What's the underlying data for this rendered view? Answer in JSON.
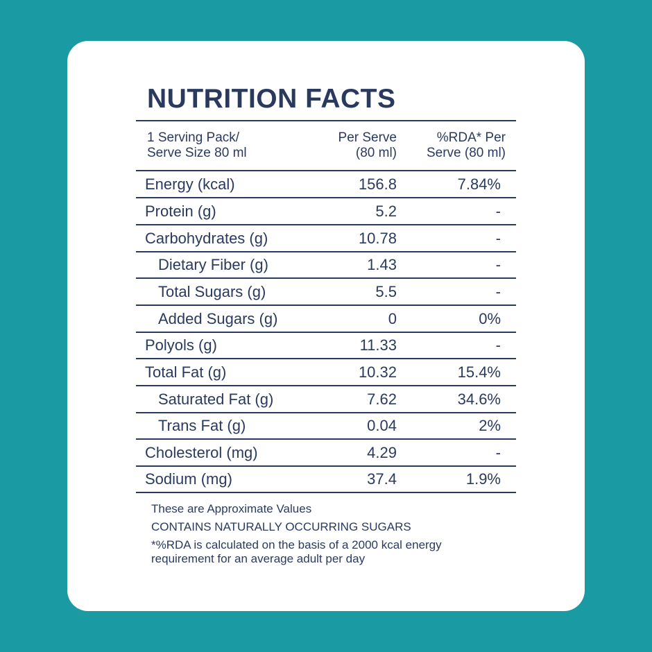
{
  "title": "NUTRITION FACTS",
  "header": {
    "col1_line1": "1 Serving Pack/",
    "col1_line2": "Serve Size 80 ml",
    "col2_line1": "Per Serve",
    "col2_line2": "(80 ml)",
    "col3_line1": "%RDA* Per",
    "col3_line2": "Serve (80 ml)"
  },
  "rows": [
    {
      "label": "Energy (kcal)",
      "per_serve": "156.8",
      "rda": "7.84%"
    },
    {
      "label": "Protein (g)",
      "per_serve": "5.2",
      "rda": "-"
    },
    {
      "label": "Carbohydrates (g)",
      "per_serve": "10.78",
      "rda": "-"
    },
    {
      "label": "Dietary Fiber (g)",
      "per_serve": "1.43",
      "rda": "-"
    },
    {
      "label": "Total Sugars (g)",
      "per_serve": "5.5",
      "rda": "-"
    },
    {
      "label": "Added Sugars (g)",
      "per_serve": "0",
      "rda": "0%"
    },
    {
      "label": "Polyols (g)",
      "per_serve": "11.33",
      "rda": "-"
    },
    {
      "label": "Total Fat (g)",
      "per_serve": "10.32",
      "rda": "15.4%"
    },
    {
      "label": "Saturated Fat (g)",
      "per_serve": "7.62",
      "rda": "34.6%"
    },
    {
      "label": "Trans Fat (g)",
      "per_serve": "0.04",
      "rda": "2%"
    },
    {
      "label": "Cholesterol (mg)",
      "per_serve": "4.29",
      "rda": "-"
    },
    {
      "label": "Sodium (mg)",
      "per_serve": "37.4",
      "rda": "1.9%"
    }
  ],
  "notes": {
    "line1": "These are Approximate Values",
    "line2": "CONTAINS NATURALLY OCCURRING SUGARS",
    "line3a": "*%RDA is calculated on the basis of a 2000 kcal energy",
    "line3b": "requirement for an average adult per day"
  },
  "colors": {
    "background": "#1a9aa3",
    "card": "#ffffff",
    "text": "#2a3a5f"
  }
}
